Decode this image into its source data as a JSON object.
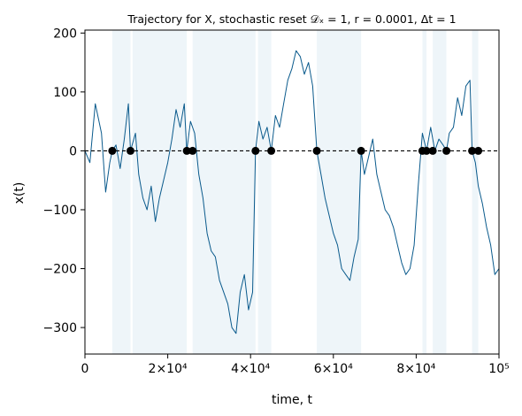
{
  "chart_data": {
    "type": "line",
    "title": "Trajectory for X, stochastic reset 𝒟ₓ = 1, r = 0.0001, Δt = 1",
    "xlabel": "time, t",
    "ylabel": "x(t)",
    "xlim": [
      0,
      100000
    ],
    "ylim": [
      -345,
      205
    ],
    "x_ticks": [
      0,
      20000,
      40000,
      60000,
      80000,
      100000
    ],
    "x_tick_labels": [
      "0",
      "2×10⁴",
      "4×10⁴",
      "6×10⁴",
      "8×10⁴",
      "10⁵"
    ],
    "y_ticks": [
      -300,
      -200,
      -100,
      0,
      100,
      200
    ],
    "y_tick_labels": [
      "−300",
      "−200",
      "−100",
      "0",
      "100",
      "200"
    ],
    "grid": false,
    "series": [
      {
        "color": "#0a5a8c",
        "x": [
          0,
          1200,
          2500,
          4000,
          5000,
          6000,
          6600,
          7500,
          8500,
          9500,
          10500,
          11000,
          12200,
          13000,
          14000,
          15000,
          16000,
          17000,
          18000,
          19000,
          20000,
          21000,
          22000,
          23000,
          24000,
          24600,
          25500,
          26500,
          27500,
          28500,
          29500,
          30500,
          31500,
          32500,
          33500,
          34500,
          35500,
          36500,
          37500,
          38500,
          39500,
          40500,
          41200,
          42000,
          43000,
          44000,
          45000,
          46000,
          47000,
          48000,
          49000,
          50000,
          51000,
          52000,
          53000,
          54000,
          55000,
          56000,
          57000,
          58000,
          59000,
          60000,
          61000,
          62000,
          63000,
          64000,
          65000,
          66000,
          66700,
          67500,
          68500,
          69500,
          70500,
          71500,
          72500,
          73500,
          74500,
          75500,
          76500,
          77500,
          78500,
          79500,
          80500,
          81500,
          82500,
          83500,
          84500,
          85500,
          86500,
          87300,
          88000,
          89000,
          90000,
          91000,
          92000,
          93000,
          93500,
          94300,
          95000,
          96000,
          97000,
          98000,
          99000,
          100000
        ],
        "y": [
          0,
          -20,
          80,
          30,
          -70,
          -20,
          0,
          10,
          -30,
          20,
          80,
          0,
          30,
          -40,
          -80,
          -100,
          -60,
          -120,
          -80,
          -50,
          -20,
          20,
          70,
          40,
          80,
          0,
          50,
          30,
          -40,
          -80,
          -140,
          -170,
          -180,
          -220,
          -240,
          -260,
          -300,
          -310,
          -240,
          -210,
          -270,
          -240,
          0,
          50,
          20,
          40,
          0,
          60,
          40,
          80,
          120,
          140,
          170,
          160,
          130,
          150,
          110,
          0,
          -40,
          -80,
          -110,
          -140,
          -160,
          -200,
          -210,
          -220,
          -180,
          -150,
          0,
          -40,
          -10,
          20,
          -40,
          -70,
          -100,
          -110,
          -130,
          -160,
          -190,
          -210,
          -200,
          -160,
          -60,
          30,
          0,
          40,
          0,
          20,
          10,
          0,
          30,
          40,
          90,
          60,
          110,
          120,
          0,
          -20,
          -60,
          -90,
          -130,
          -160,
          -210,
          -200
        ]
      }
    ],
    "reset_times": [
      6600,
      11000,
      24600,
      26000,
      41200,
      45000,
      56000,
      66700,
      81500,
      82500,
      84000,
      87300,
      93500,
      95000
    ],
    "reset_level": 0,
    "shaded_intervals": [
      [
        6600,
        11000
      ],
      [
        11500,
        24600
      ],
      [
        26000,
        41200
      ],
      [
        41800,
        45000
      ],
      [
        56000,
        66700
      ],
      [
        81500,
        82500
      ],
      [
        84000,
        87300
      ],
      [
        93500,
        95000
      ]
    ],
    "colors": {
      "line": "#0a5a8c",
      "shade": "#eef5f9",
      "marker": "#000000",
      "dashed": "#000000"
    }
  }
}
